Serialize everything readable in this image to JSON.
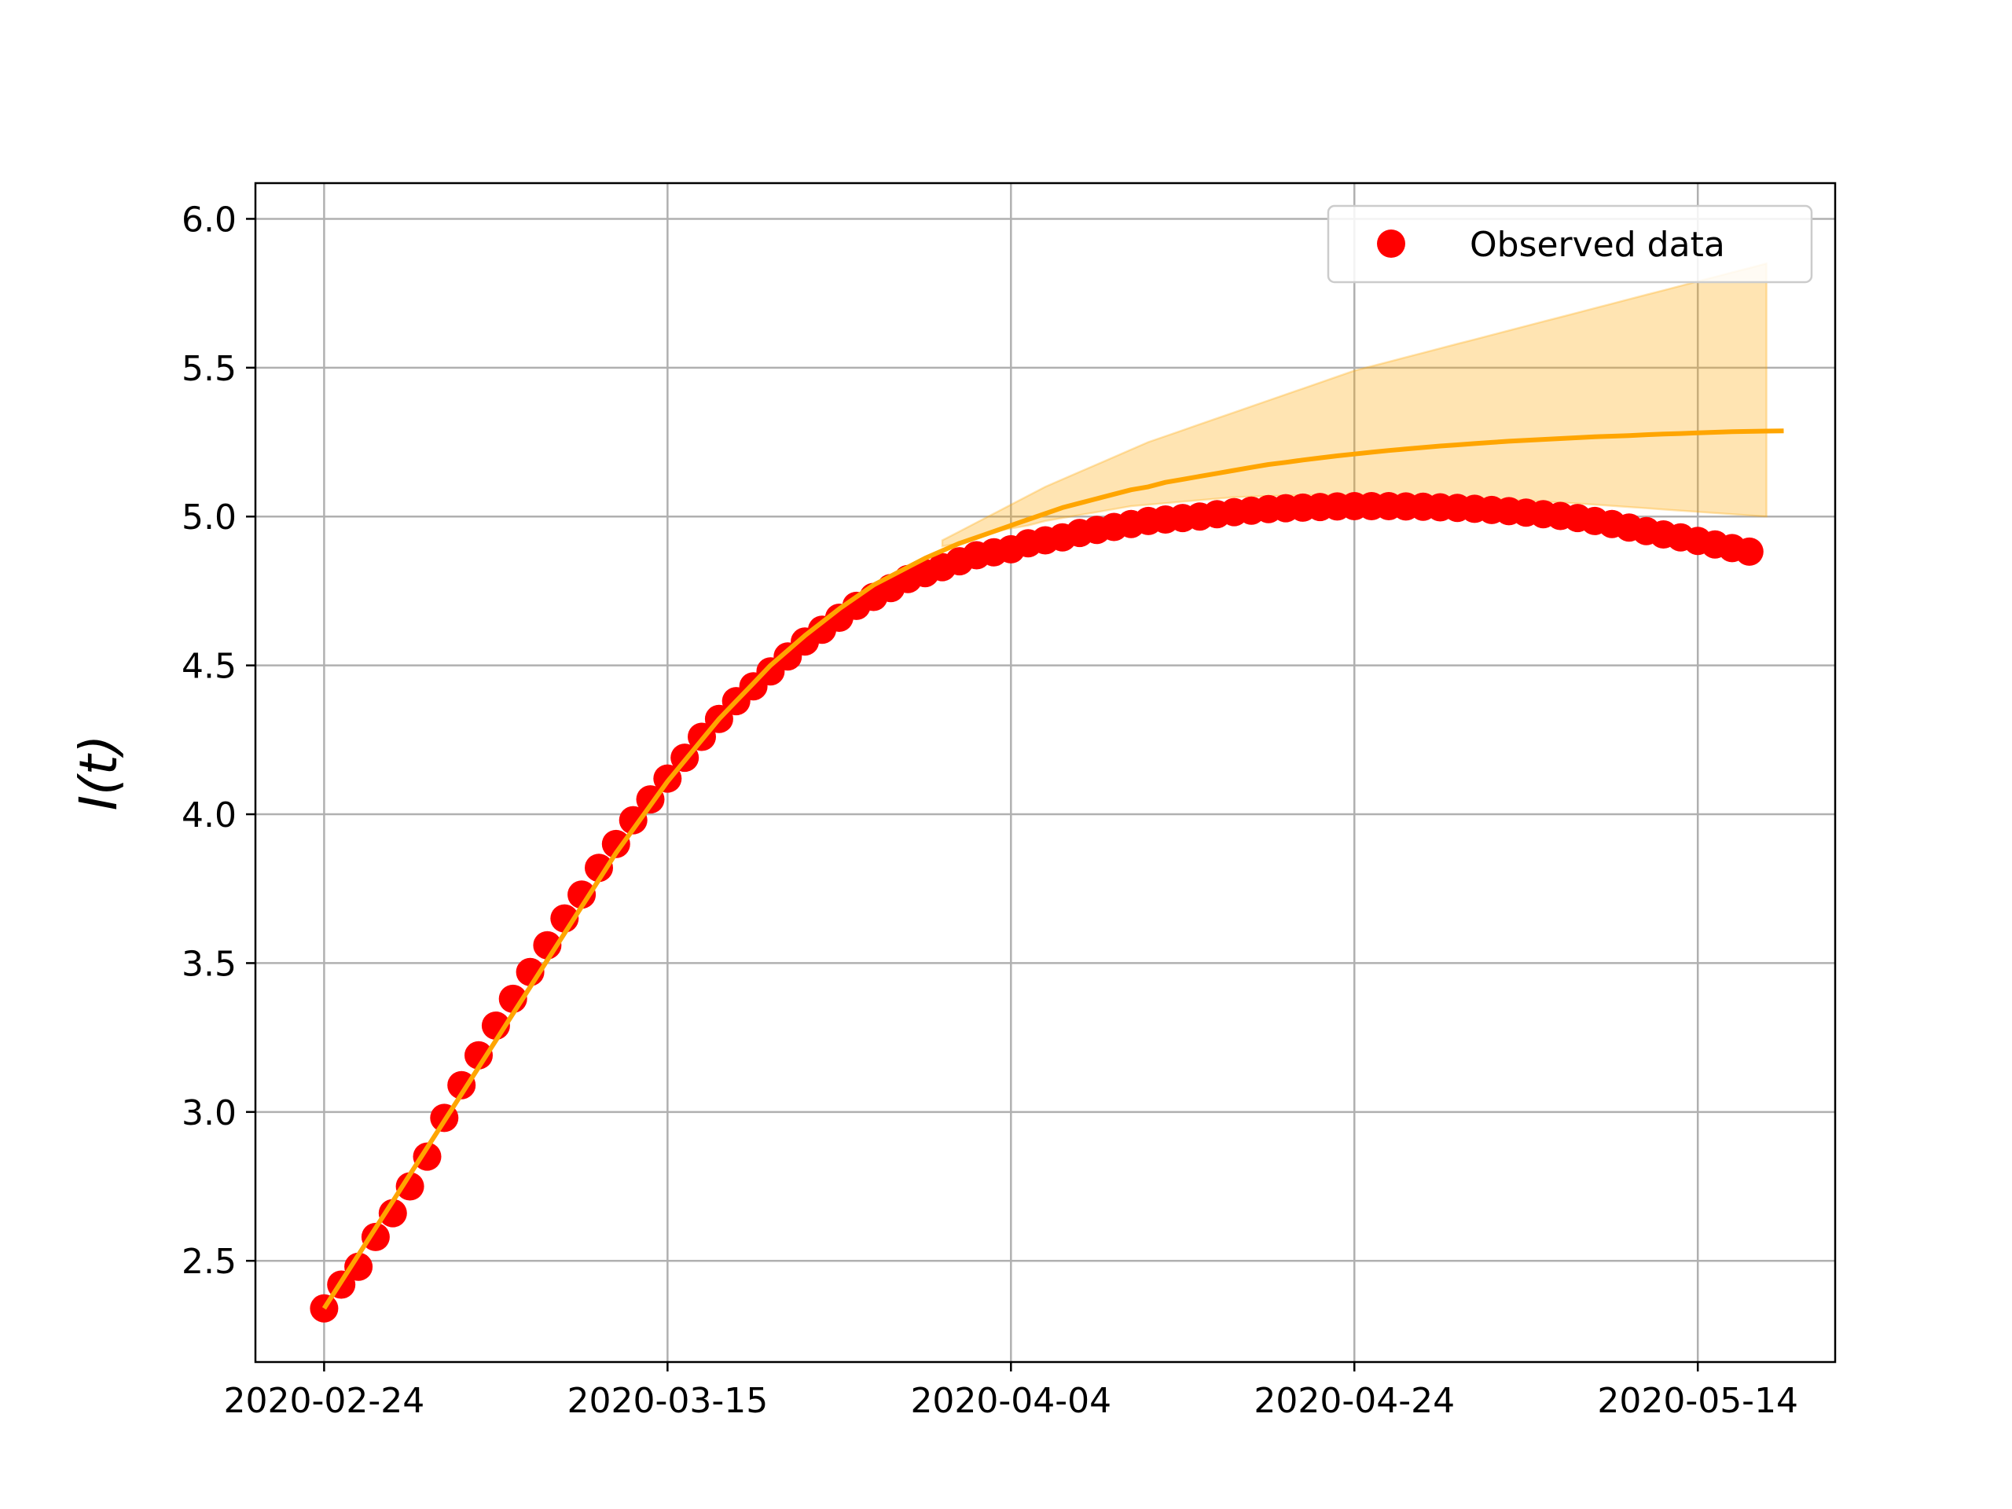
{
  "chart_data": {
    "type": "line",
    "title": "",
    "xlabel": "",
    "ylabel": "I(t)",
    "x_start": "2020-02-24",
    "x_end": "2020-05-18",
    "xlim": [
      "2020-02-20",
      "2020-05-22"
    ],
    "ylim": [
      2.16,
      6.12
    ],
    "x_ticks": [
      "2020-02-24",
      "2020-03-15",
      "2020-04-04",
      "2020-04-24",
      "2020-05-14"
    ],
    "y_ticks": [
      "2.5",
      "3.0",
      "3.5",
      "4.0",
      "4.5",
      "5.0",
      "5.5",
      "6.0"
    ],
    "grid": true,
    "legend": {
      "placement": "top-right",
      "entries": [
        "Observed data"
      ]
    },
    "series": [
      {
        "name": "Observed data",
        "style": "scatter",
        "color": "#ff0000",
        "values": [
          2.34,
          2.42,
          2.48,
          2.58,
          2.66,
          2.75,
          2.85,
          2.98,
          3.09,
          3.19,
          3.29,
          3.38,
          3.47,
          3.56,
          3.65,
          3.73,
          3.82,
          3.9,
          3.98,
          4.05,
          4.12,
          4.19,
          4.26,
          4.32,
          4.38,
          4.43,
          4.48,
          4.53,
          4.58,
          4.62,
          4.66,
          4.7,
          4.73,
          4.76,
          4.79,
          4.81,
          4.83,
          4.85,
          4.87,
          4.88,
          4.89,
          4.91,
          4.92,
          4.93,
          4.945,
          4.955,
          4.965,
          4.975,
          4.985,
          4.99,
          4.995,
          5.0,
          5.008,
          5.015,
          5.02,
          5.025,
          5.028,
          5.03,
          5.032,
          5.034,
          5.035,
          5.035,
          5.035,
          5.034,
          5.033,
          5.031,
          5.029,
          5.026,
          5.022,
          5.018,
          5.013,
          5.008,
          5.002,
          4.995,
          4.985,
          4.975,
          4.963,
          4.951,
          4.94,
          4.93,
          4.918,
          4.906,
          4.894,
          4.882
        ]
      },
      {
        "style": "line",
        "color": "#ffa500",
        "values": [
          2.34,
          2.43,
          2.52,
          2.61,
          2.7,
          2.79,
          2.88,
          2.97,
          3.06,
          3.15,
          3.24,
          3.33,
          3.42,
          3.51,
          3.6,
          3.69,
          3.78,
          3.87,
          3.95,
          4.03,
          4.11,
          4.18,
          4.25,
          4.32,
          4.38,
          4.44,
          4.5,
          4.55,
          4.6,
          4.645,
          4.69,
          4.73,
          4.77,
          4.8,
          4.83,
          4.86,
          4.885,
          4.91,
          4.93,
          4.95,
          4.97,
          4.99,
          5.01,
          5.03,
          5.045,
          5.06,
          5.075,
          5.09,
          5.1,
          5.115,
          5.125,
          5.135,
          5.145,
          5.155,
          5.165,
          5.175,
          5.182,
          5.19,
          5.197,
          5.204,
          5.21,
          5.216,
          5.222,
          5.227,
          5.232,
          5.237,
          5.241,
          5.245,
          5.249,
          5.253,
          5.256,
          5.259,
          5.262,
          5.265,
          5.268,
          5.27,
          5.272,
          5.275,
          5.277,
          5.279,
          5.281,
          5.283,
          5.285,
          5.286,
          5.287,
          5.288
        ]
      }
    ],
    "band": {
      "color": "#ffa500",
      "start": "2020-03-31",
      "lower": [
        4.9,
        4.91,
        4.93,
        4.95,
        4.96,
        4.97,
        4.985,
        4.995,
        5.005,
        5.015,
        5.025,
        5.035,
        5.04,
        5.045,
        5.05,
        5.055,
        5.06,
        5.065,
        5.067,
        5.069,
        5.07,
        5.071,
        5.072,
        5.072,
        5.072,
        5.071,
        5.07,
        5.069,
        5.067,
        5.065,
        5.063,
        5.061,
        5.059,
        5.056,
        5.053,
        5.05,
        5.047,
        5.044,
        5.04,
        5.036,
        5.032,
        5.028,
        5.024,
        5.02,
        5.016,
        5.012,
        5.008,
        5.004,
        5.0
      ],
      "upper": [
        4.92,
        4.95,
        4.98,
        5.01,
        5.04,
        5.07,
        5.1,
        5.125,
        5.15,
        5.175,
        5.2,
        5.225,
        5.25,
        5.27,
        5.29,
        5.31,
        5.33,
        5.35,
        5.37,
        5.39,
        5.41,
        5.43,
        5.45,
        5.47,
        5.49,
        5.505,
        5.52,
        5.535,
        5.55,
        5.565,
        5.58,
        5.595,
        5.61,
        5.625,
        5.64,
        5.655,
        5.67,
        5.685,
        5.7,
        5.715,
        5.73,
        5.745,
        5.76,
        5.775,
        5.79,
        5.805,
        5.82,
        5.835,
        5.85
      ]
    }
  }
}
